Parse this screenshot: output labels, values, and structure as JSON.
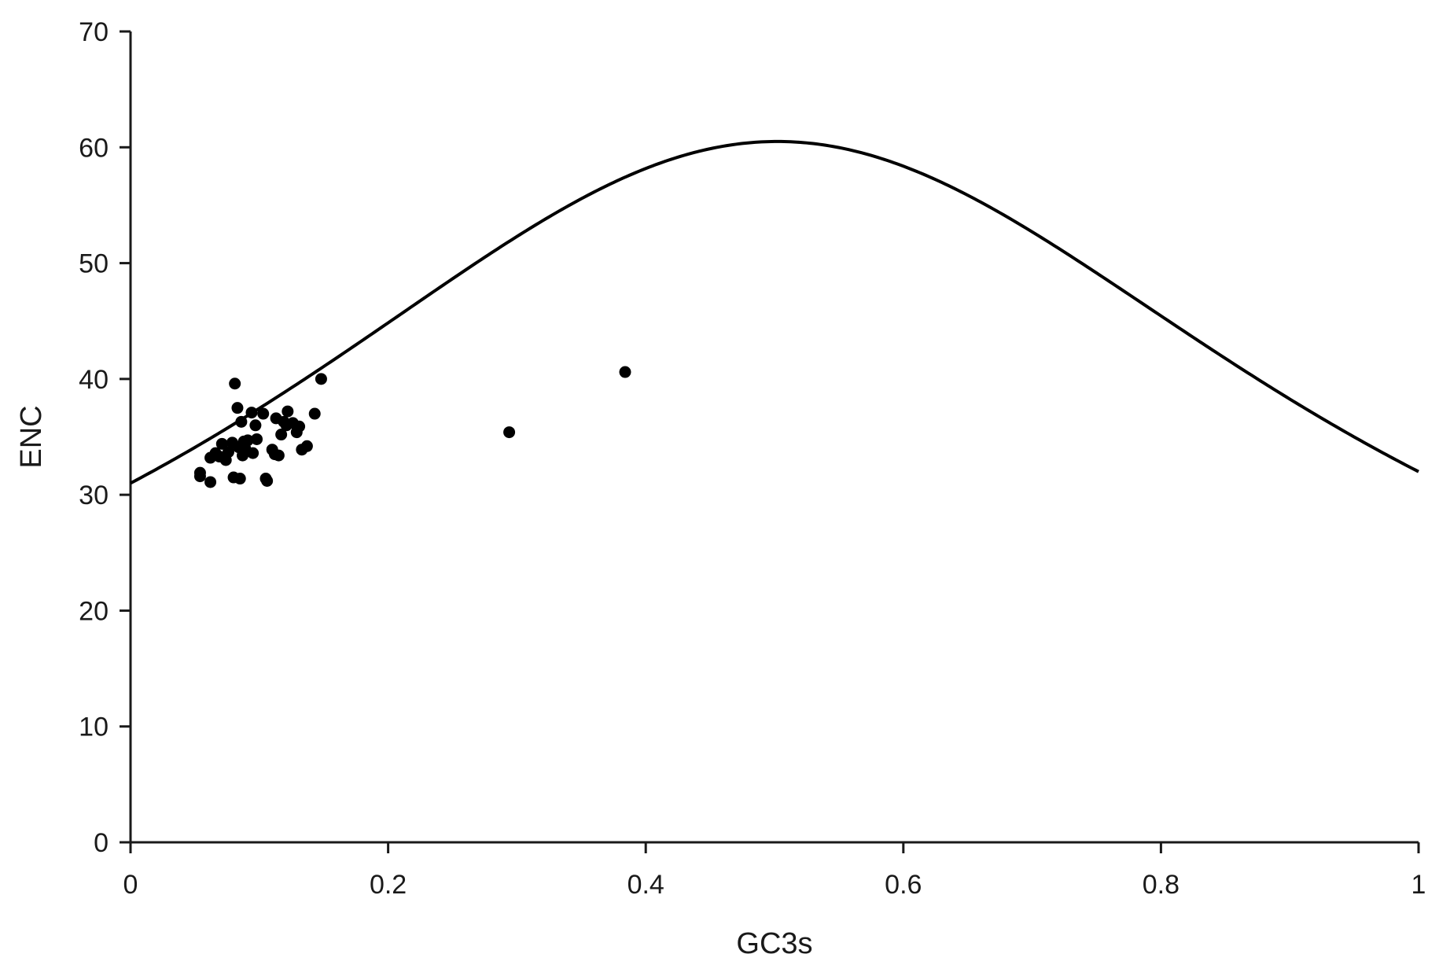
{
  "chart_data": {
    "type": "scatter",
    "xlabel": "GC3s",
    "ylabel": "ENC",
    "xlim": [
      0,
      1
    ],
    "ylim": [
      0,
      70
    ],
    "x_ticks": [
      "0",
      "0.2",
      "0.4",
      "0.6",
      "0.8",
      "1"
    ],
    "y_ticks": [
      "0",
      "10",
      "20",
      "30",
      "40",
      "50",
      "60",
      "70"
    ],
    "grid": false,
    "legend": "none",
    "expected_curve": {
      "formula": "ENC = 2 + s + 29 / (s^2 + (1 - s)^2)",
      "x_range": [
        0,
        1
      ]
    },
    "series": [
      {
        "points": [
          [
            0.054,
            31.9
          ],
          [
            0.054,
            31.6
          ],
          [
            0.062,
            31.1
          ],
          [
            0.062,
            33.2
          ],
          [
            0.066,
            33.6
          ],
          [
            0.069,
            33.3
          ],
          [
            0.071,
            34.4
          ],
          [
            0.074,
            33.0
          ],
          [
            0.076,
            33.7
          ],
          [
            0.079,
            34.5
          ],
          [
            0.08,
            31.5
          ],
          [
            0.081,
            39.6
          ],
          [
            0.083,
            37.5
          ],
          [
            0.084,
            34.1
          ],
          [
            0.085,
            31.4
          ],
          [
            0.086,
            36.3
          ],
          [
            0.087,
            33.4
          ],
          [
            0.088,
            34.6
          ],
          [
            0.089,
            34.0
          ],
          [
            0.091,
            34.7
          ],
          [
            0.094,
            37.1
          ],
          [
            0.095,
            33.6
          ],
          [
            0.097,
            36.0
          ],
          [
            0.098,
            34.8
          ],
          [
            0.103,
            37.0
          ],
          [
            0.105,
            31.4
          ],
          [
            0.106,
            31.2
          ],
          [
            0.11,
            33.9
          ],
          [
            0.112,
            33.5
          ],
          [
            0.113,
            36.6
          ],
          [
            0.115,
            33.4
          ],
          [
            0.117,
            35.2
          ],
          [
            0.119,
            36.3
          ],
          [
            0.121,
            36.0
          ],
          [
            0.122,
            37.2
          ],
          [
            0.126,
            36.2
          ],
          [
            0.129,
            35.4
          ],
          [
            0.131,
            35.9
          ],
          [
            0.133,
            33.9
          ],
          [
            0.137,
            34.2
          ],
          [
            0.143,
            37.0
          ],
          [
            0.148,
            40.0
          ],
          [
            0.294,
            35.4
          ],
          [
            0.384,
            40.6
          ]
        ]
      }
    ]
  }
}
